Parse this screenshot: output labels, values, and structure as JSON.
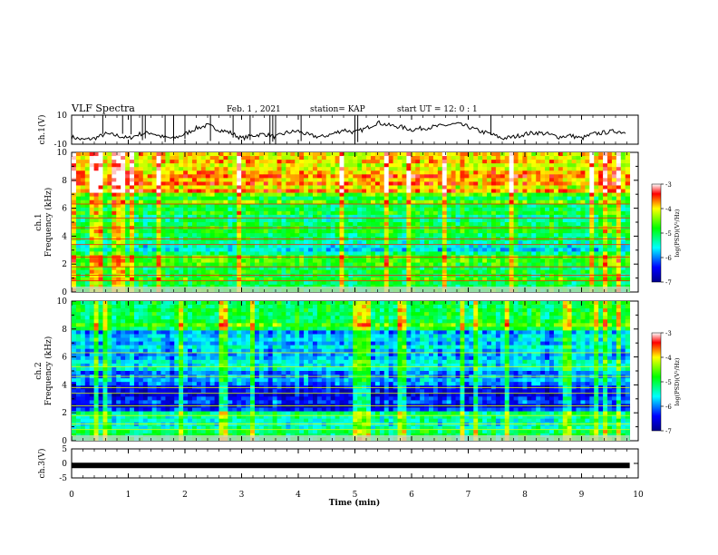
{
  "header": {
    "title": "VLF Spectra",
    "date": "Feb. 1 , 2021",
    "station": "station= KAP",
    "start": "start  UT  =   12: 0  : 1"
  },
  "chart_data": [
    {
      "type": "line",
      "panel": "ch1-waveform",
      "ylabel": "ch.1(V)",
      "ylim": [
        -10,
        10
      ],
      "yticks": [
        "10",
        "-10"
      ],
      "x": [
        0,
        0.2,
        0.4,
        0.6,
        0.8,
        1.0,
        1.2,
        1.4,
        1.6,
        1.8,
        2.0,
        2.2,
        2.4,
        2.6,
        2.8,
        3.0,
        3.2,
        3.4,
        3.6,
        3.8,
        4.0,
        4.2,
        4.4,
        4.6,
        4.8,
        5.0,
        5.2,
        5.4,
        5.6,
        5.8,
        6.0,
        6.2,
        6.4,
        6.6,
        6.8,
        7.0,
        7.2,
        7.4,
        7.6,
        7.8,
        8.0,
        8.2,
        8.4,
        8.6,
        8.8,
        9.0,
        9.2,
        9.4,
        9.6,
        9.8
      ],
      "y": [
        -5,
        -7,
        -6,
        -3,
        -4,
        -6,
        -3,
        -2,
        -5,
        -6,
        -3,
        1,
        3,
        0,
        -2,
        -6,
        -4,
        -3,
        -5,
        -2,
        -1,
        -4,
        -5,
        -3,
        0,
        -2,
        1,
        5,
        3,
        2,
        0,
        1,
        2,
        3,
        4,
        2,
        -1,
        -3,
        -6,
        -5,
        -3,
        -2,
        -3,
        -5,
        -4,
        -6,
        -3,
        -2,
        -1,
        -2
      ]
    },
    {
      "type": "heatmap",
      "panel": "ch1-spectrogram",
      "ylabel": "ch.1",
      "ylabel2": "Frequency  (kHz)",
      "ylim": [
        0,
        10
      ],
      "yticks": [
        "0",
        "2",
        "4",
        "6",
        "8",
        "10"
      ],
      "colorbar": {
        "label": "log(PSD)(V²/Hz)",
        "range": [
          -7,
          -3
        ],
        "ticks": [
          "-3",
          "-4",
          "-5",
          "-6",
          "-7"
        ]
      }
    },
    {
      "type": "heatmap",
      "panel": "ch2-spectrogram",
      "ylabel": "ch.2",
      "ylabel2": "Frequency  (kHz)",
      "ylim": [
        0,
        10
      ],
      "yticks": [
        "0",
        "2",
        "4",
        "6",
        "8",
        "10"
      ],
      "colorbar": {
        "label": "log(PSD)(V²/Hz)",
        "range": [
          -7,
          -3
        ],
        "ticks": [
          "-3",
          "-4",
          "-5",
          "-6",
          "-7"
        ]
      }
    },
    {
      "type": "line",
      "panel": "ch3-waveform",
      "ylabel": "ch.3(V)",
      "ylim": [
        -5,
        5
      ],
      "yticks": [
        "5",
        "0",
        "-5"
      ],
      "x": [
        0,
        9.85
      ],
      "y": [
        -0.7,
        -0.7
      ]
    }
  ],
  "xaxis": {
    "label": "Time  (min)",
    "xlim": [
      0,
      10
    ],
    "ticks": [
      "0",
      "1",
      "2",
      "3",
      "4",
      "5",
      "6",
      "7",
      "8",
      "9",
      "10"
    ]
  },
  "colors": {
    "axis": "#000000",
    "trace": "#000000"
  }
}
